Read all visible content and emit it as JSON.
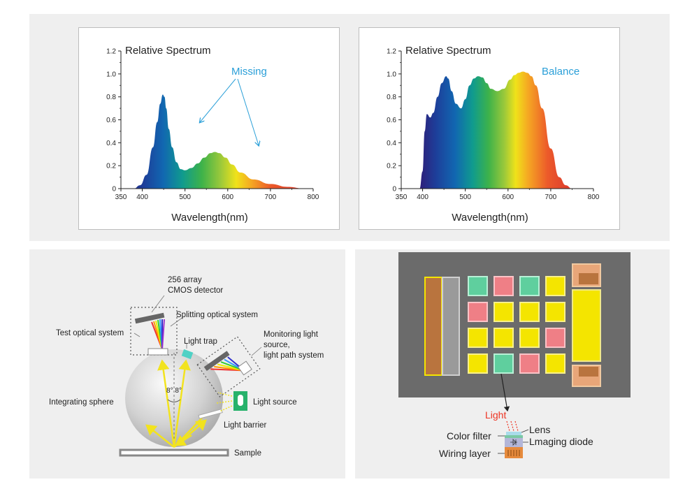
{
  "chart_data": [
    {
      "type": "area",
      "title": "Relative Spectrum",
      "xlabel": "Wavelength(nm)",
      "ylabel": "",
      "annotation": "Missing",
      "xlim": [
        350,
        800
      ],
      "ylim": [
        0,
        1.2
      ],
      "x_ticks": [
        "350",
        "400",
        "500",
        "600",
        "700",
        "800"
      ],
      "y_ticks": [
        "0",
        "0.2",
        "0.4",
        "0.6",
        "0.8",
        "1.0",
        "1.2"
      ],
      "x": [
        380,
        395,
        410,
        425,
        435,
        442,
        448,
        452,
        456,
        462,
        470,
        480,
        490,
        500,
        515,
        530,
        545,
        560,
        570,
        580,
        595,
        610,
        630,
        660,
        700,
        740,
        780
      ],
      "values": [
        0,
        0.03,
        0.12,
        0.36,
        0.58,
        0.74,
        0.82,
        0.8,
        0.7,
        0.52,
        0.36,
        0.23,
        0.17,
        0.16,
        0.18,
        0.22,
        0.27,
        0.31,
        0.32,
        0.31,
        0.27,
        0.21,
        0.14,
        0.08,
        0.04,
        0.015,
        0
      ]
    },
    {
      "type": "area",
      "title": "Relative Spectrum",
      "xlabel": "Wavelength(nm)",
      "ylabel": "",
      "annotation": "Balance",
      "xlim": [
        350,
        800
      ],
      "ylim": [
        0,
        1.2
      ],
      "x_ticks": [
        "350",
        "400",
        "500",
        "600",
        "700",
        "800"
      ],
      "y_ticks": [
        "0",
        "0.2",
        "0.4",
        "0.6",
        "0.8",
        "1.0",
        "1.2"
      ],
      "x": [
        393,
        400,
        405,
        410,
        418,
        425,
        435,
        445,
        455,
        460,
        468,
        478,
        490,
        500,
        510,
        520,
        530,
        540,
        550,
        560,
        575,
        590,
        605,
        615,
        625,
        635,
        645,
        655,
        665,
        680,
        700,
        720,
        735,
        750
      ],
      "values": [
        0,
        0.15,
        0.5,
        0.65,
        0.62,
        0.66,
        0.8,
        0.92,
        0.98,
        0.96,
        0.85,
        0.74,
        0.7,
        0.78,
        0.9,
        0.96,
        0.98,
        0.97,
        0.92,
        0.87,
        0.85,
        0.87,
        0.95,
        0.99,
        1.01,
        1.02,
        1.01,
        0.98,
        0.9,
        0.7,
        0.35,
        0.1,
        0.03,
        0
      ]
    }
  ],
  "sphere_diagram": {
    "labels": {
      "detector": "256 array\nCMOS detector",
      "splitting": "Splitting optical system",
      "test": "Test optical system",
      "trap": "Light trap",
      "monitoring": "Monitoring light\nsource,\nlight path system",
      "angle": "8° 8°",
      "sphere": "Integrating sphere",
      "source": "Light source",
      "barrier": "Light barrier",
      "sample": "Sample"
    }
  },
  "sensor_diagram": {
    "labels": {
      "light": "Light",
      "lens": "Lens",
      "color_filter": "Color filter",
      "imaging_diode": "Lmaging diode",
      "wiring": "Wiring layer"
    },
    "colors": {
      "background": "#6b6b6b",
      "green": "#5fcf9e",
      "red": "#ef7f86",
      "yellow": "#f4e500",
      "orange": "#b9743e"
    },
    "grid": [
      [
        "green",
        "red",
        "green",
        "yellow"
      ],
      [
        "red",
        "yellow",
        "yellow",
        "yellow"
      ],
      [
        "yellow",
        "yellow",
        "yellow",
        "red"
      ],
      [
        "yellow",
        "green",
        "red",
        "yellow"
      ]
    ]
  }
}
